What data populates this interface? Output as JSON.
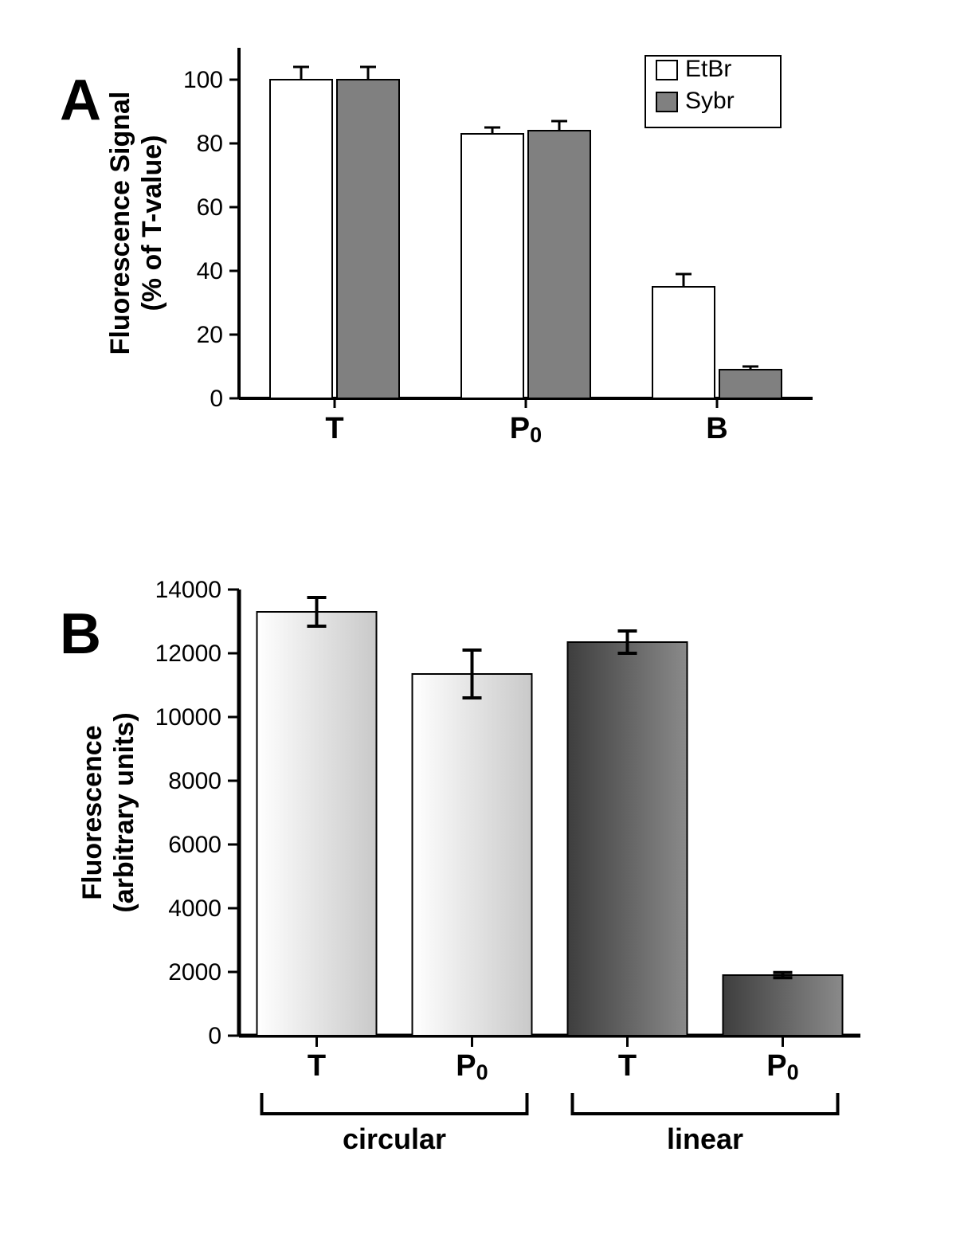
{
  "panelA": {
    "label": "A",
    "label_fontsize": 72,
    "label_weight": "bold",
    "type": "bar",
    "ylabel_line1": "Fluorescence Signal",
    "ylabel_line2": "(% of T-value)",
    "ylabel_fontsize": 34,
    "ylim": [
      0,
      110
    ],
    "yticks": [
      0,
      20,
      40,
      60,
      80,
      100
    ],
    "ytick_fontsize": 30,
    "xtick_fontsize": 38,
    "categories": [
      {
        "label": "T",
        "sub": ""
      },
      {
        "label": "P",
        "sub": "0"
      },
      {
        "label": "B",
        "sub": ""
      }
    ],
    "series": [
      {
        "name": "EtBr",
        "fill": "#ffffff",
        "values": [
          100,
          83,
          35
        ],
        "err": [
          4,
          2,
          4
        ]
      },
      {
        "name": "Sybr",
        "fill": "#808080",
        "values": [
          100,
          84,
          9
        ],
        "err": [
          4,
          3,
          1
        ]
      }
    ],
    "legend": {
      "items": [
        {
          "label": "EtBr",
          "fill": "#ffffff"
        },
        {
          "label": "Sybr",
          "fill": "#808080"
        }
      ],
      "fontsize": 30
    },
    "colors": {
      "axis": "#000000",
      "tick": "#000000",
      "text": "#000000",
      "background": "#ffffff"
    },
    "axis_linewidth": 4,
    "bar_border": "#000000",
    "bar_border_width": 2,
    "error_cap_width": 20,
    "error_linewidth": 3
  },
  "panelB": {
    "label": "B",
    "label_fontsize": 72,
    "label_weight": "bold",
    "type": "bar",
    "ylabel_line1": "Fluorescence",
    "ylabel_line2": "(arbitrary units)",
    "ylabel_fontsize": 34,
    "ylim": [
      0,
      14000
    ],
    "yticks": [
      0,
      2000,
      4000,
      6000,
      8000,
      10000,
      12000,
      14000
    ],
    "ytick_fontsize": 30,
    "xtick_fontsize": 38,
    "groups": [
      {
        "label": "circular",
        "indices": [
          0,
          1
        ]
      },
      {
        "label": "linear",
        "indices": [
          2,
          3
        ]
      }
    ],
    "group_label_fontsize": 36,
    "bars": [
      {
        "cat": "T",
        "sub": "",
        "value": 13300,
        "err": 450,
        "gradient": "light"
      },
      {
        "cat": "P",
        "sub": "0",
        "value": 11350,
        "err": 750,
        "gradient": "light"
      },
      {
        "cat": "T",
        "sub": "",
        "value": 12350,
        "err": 350,
        "gradient": "dark"
      },
      {
        "cat": "P",
        "sub": "0",
        "value": 1900,
        "err": 80,
        "gradient": "dark"
      }
    ],
    "gradients": {
      "light": {
        "from": "#ffffff",
        "to": "#c9c9c9"
      },
      "dark": {
        "from": "#3e3e3e",
        "to": "#8a8a8a"
      }
    },
    "colors": {
      "axis": "#000000",
      "tick": "#000000",
      "text": "#000000",
      "background": "#ffffff"
    },
    "axis_linewidth": 5,
    "bar_border": "#000000",
    "bar_border_width": 2,
    "error_cap_width": 24,
    "error_linewidth": 4,
    "bracket_linewidth": 4
  }
}
